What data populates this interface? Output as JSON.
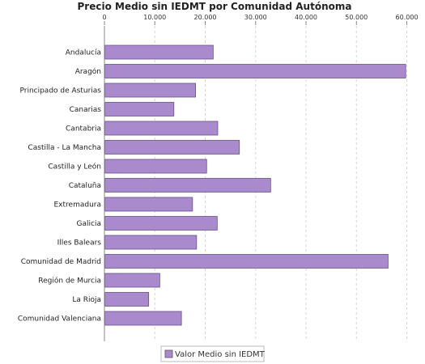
{
  "chart_data": {
    "type": "bar",
    "orientation": "horizontal",
    "title": "Precio Medio sin IEDMT por Comunidad Autónoma",
    "xlabel": "",
    "ylabel": "",
    "xlim": [
      0,
      62000
    ],
    "ticks": [
      0,
      10000,
      20000,
      30000,
      40000,
      50000,
      60000
    ],
    "tick_labels": [
      "0",
      "10.000",
      "20.000",
      "30.000",
      "40.000",
      "50.000",
      "60.000"
    ],
    "axis_position": "top",
    "grid": true,
    "legend_position": "bottom",
    "categories": [
      "Andalucía",
      "Aragón",
      "Principado de Asturias",
      "Canarias",
      "Cantabria",
      "Castilla - La Mancha",
      "Castilla y León",
      "Cataluña",
      "Extremadura",
      "Galicia",
      "Illes Balears",
      "Comunidad de Madrid",
      "Región de Murcia",
      "La Rioja",
      "Comunidad Valenciana"
    ],
    "series": [
      {
        "name": "Valor Medio sin IEDMT",
        "color": "#a98bcd",
        "values": [
          21500,
          59700,
          18000,
          13700,
          22400,
          26700,
          20200,
          32900,
          17400,
          22300,
          18200,
          56200,
          10900,
          8700,
          15200
        ]
      }
    ]
  }
}
